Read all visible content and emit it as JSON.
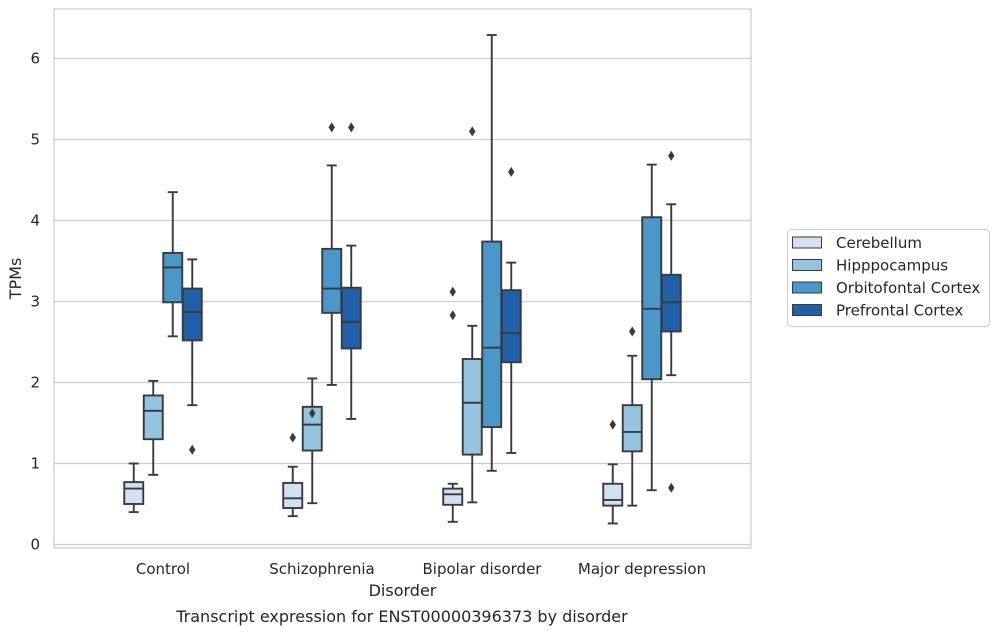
{
  "chart_data": {
    "type": "box",
    "title": "",
    "caption": "Transcript expression for ENST00000396373 by disorder",
    "xlabel": "Disorder",
    "ylabel": "TPMs",
    "ylim": [
      -0.05,
      6.6
    ],
    "yticks": [
      0,
      1,
      2,
      3,
      4,
      5,
      6
    ],
    "grid": "horizontal",
    "legend_position": "right",
    "categories": [
      "Control",
      "Schizophrenia",
      "Bipolar disorder",
      "Major depression"
    ],
    "series": [
      {
        "name": "Cerebellum",
        "color": "#d0e1f2",
        "boxes": [
          {
            "whisker_low": 0.4,
            "q1": 0.5,
            "median": 0.69,
            "q3": 0.77,
            "whisker_high": 1.0,
            "outliers": []
          },
          {
            "whisker_low": 0.35,
            "q1": 0.45,
            "median": 0.57,
            "q3": 0.76,
            "whisker_high": 0.96,
            "outliers": [
              1.32
            ]
          },
          {
            "whisker_low": 0.28,
            "q1": 0.49,
            "median": 0.62,
            "q3": 0.69,
            "whisker_high": 0.75,
            "outliers": [
              2.83,
              3.12
            ]
          },
          {
            "whisker_low": 0.26,
            "q1": 0.48,
            "median": 0.55,
            "q3": 0.75,
            "whisker_high": 0.99,
            "outliers": [
              1.48
            ]
          }
        ]
      },
      {
        "name": "Hipppocampus",
        "color": "#94c4df",
        "boxes": [
          {
            "whisker_low": 0.86,
            "q1": 1.3,
            "median": 1.65,
            "q3": 1.84,
            "whisker_high": 2.02,
            "outliers": []
          },
          {
            "whisker_low": 0.51,
            "q1": 1.16,
            "median": 1.48,
            "q3": 1.7,
            "whisker_high": 2.05,
            "outliers": [
              1.62
            ]
          },
          {
            "whisker_low": 0.52,
            "q1": 1.11,
            "median": 1.75,
            "q3": 2.29,
            "whisker_high": 2.7,
            "outliers": [
              5.1
            ]
          },
          {
            "whisker_low": 0.48,
            "q1": 1.15,
            "median": 1.39,
            "q3": 1.72,
            "whisker_high": 2.33,
            "outliers": [
              2.63
            ]
          }
        ]
      },
      {
        "name": "Orbitofontal Cortex",
        "color": "#4a98c9",
        "boxes": [
          {
            "whisker_low": 2.57,
            "q1": 2.99,
            "median": 3.42,
            "q3": 3.6,
            "whisker_high": 4.35,
            "outliers": []
          },
          {
            "whisker_low": 1.97,
            "q1": 2.86,
            "median": 3.16,
            "q3": 3.65,
            "whisker_high": 4.68,
            "outliers": [
              5.15
            ]
          },
          {
            "whisker_low": 0.91,
            "q1": 1.45,
            "median": 2.43,
            "q3": 3.74,
            "whisker_high": 6.29,
            "outliers": []
          },
          {
            "whisker_low": 0.67,
            "q1": 2.04,
            "median": 2.91,
            "q3": 4.04,
            "whisker_high": 4.69,
            "outliers": []
          }
        ]
      },
      {
        "name": "Prefrontal Cortex",
        "color": "#2060a8",
        "boxes": [
          {
            "whisker_low": 1.72,
            "q1": 2.52,
            "median": 2.87,
            "q3": 3.16,
            "whisker_high": 3.52,
            "outliers": [
              1.17
            ]
          },
          {
            "whisker_low": 1.55,
            "q1": 2.42,
            "median": 2.75,
            "q3": 3.17,
            "whisker_high": 3.69,
            "outliers": [
              5.15
            ]
          },
          {
            "whisker_low": 1.13,
            "q1": 2.25,
            "median": 2.61,
            "q3": 3.14,
            "whisker_high": 3.48,
            "outliers": [
              4.6
            ]
          },
          {
            "whisker_low": 2.09,
            "q1": 2.63,
            "median": 2.99,
            "q3": 3.33,
            "whisker_high": 4.2,
            "outliers": [
              0.7,
              4.8
            ]
          }
        ]
      }
    ]
  }
}
